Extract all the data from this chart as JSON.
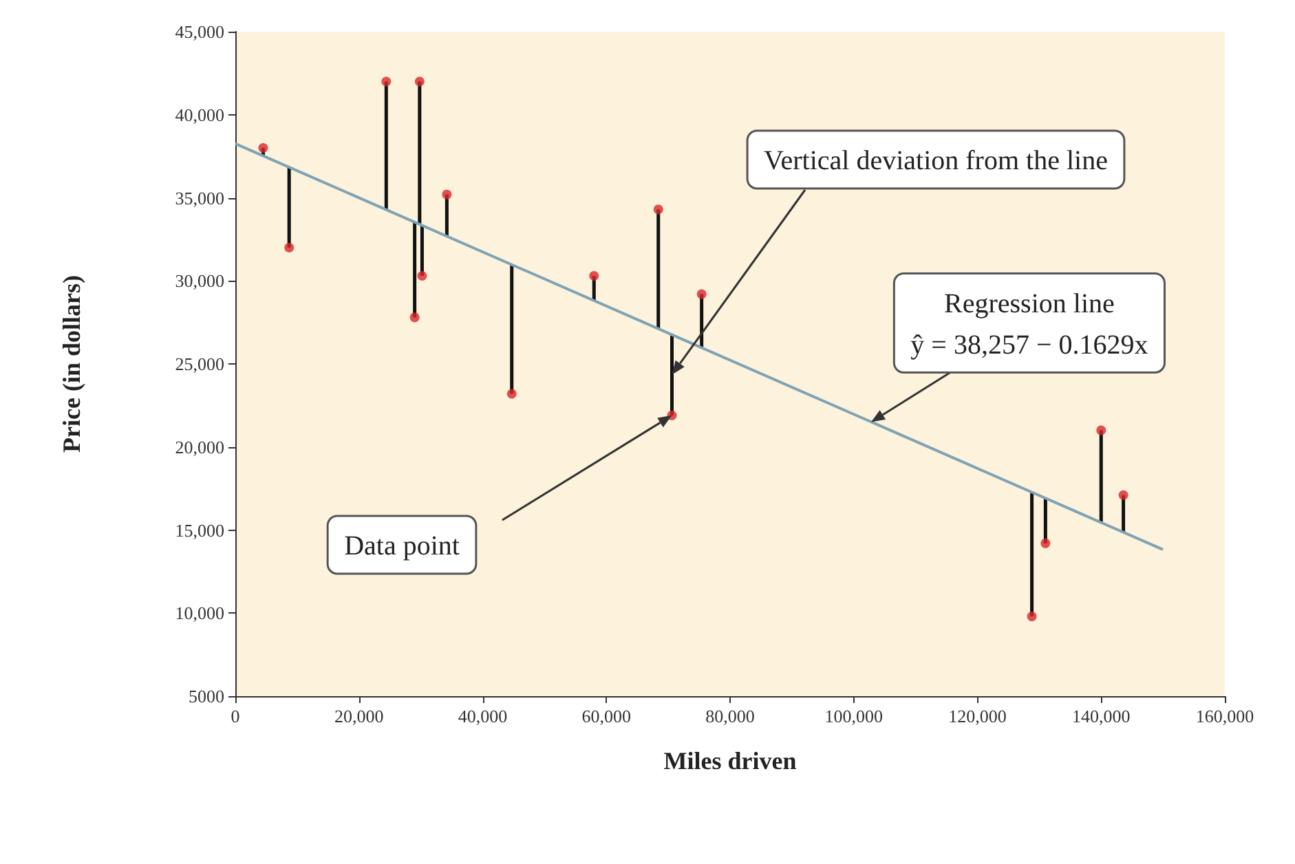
{
  "chart_data": {
    "type": "scatter",
    "xlabel": "Miles driven",
    "ylabel": "Price (in dollars)",
    "xlim": [
      0,
      160000
    ],
    "xticks": [
      0,
      {
        "value": 20000,
        "label": "20,000"
      },
      {
        "value": 40000,
        "label": "40,000"
      },
      {
        "value": 60000,
        "label": "60,000"
      },
      {
        "value": 80000,
        "label": "80,000"
      },
      {
        "value": 100000,
        "label": "100,000"
      },
      {
        "value": 120000,
        "label": "120,000"
      },
      {
        "value": 140000,
        "label": "140,000"
      },
      {
        "value": 160000,
        "label": "160,000"
      }
    ],
    "ylim": [
      5000,
      45000
    ],
    "yticks": [
      5000,
      {
        "value": 10000,
        "label": "10,000"
      },
      {
        "value": 15000,
        "label": "15,000"
      },
      {
        "value": 20000,
        "label": "20,000"
      },
      {
        "value": 25000,
        "label": "25,000"
      },
      {
        "value": 30000,
        "label": "30,000"
      },
      {
        "value": 35000,
        "label": "35,000"
      },
      {
        "value": 40000,
        "label": "40,000"
      },
      {
        "value": 45000,
        "label": "45,000"
      }
    ],
    "grid": false,
    "series": [
      {
        "marker": "circle",
        "color": "#d9262b",
        "x": [
          4500,
          8700,
          24400,
          29000,
          29800,
          30200,
          34200,
          44700,
          58000,
          68400,
          70600,
          75400,
          128800,
          131000,
          140000,
          143600
        ],
        "values": [
          38000,
          32000,
          42000,
          27800,
          42000,
          30300,
          35200,
          23200,
          30300,
          34300,
          21900,
          29200,
          9800,
          14200,
          21000,
          17100
        ],
        "errors": [
          [
            37500,
            38000
          ],
          [
            32000,
            36800
          ],
          [
            34300,
            42000
          ],
          [
            27800,
            33500
          ],
          [
            33400,
            42000
          ],
          [
            30300,
            33300
          ],
          [
            32700,
            35200
          ],
          [
            23200,
            31000
          ],
          [
            28800,
            30300
          ],
          [
            27100,
            34300
          ],
          [
            21900,
            26800
          ],
          [
            26000,
            29200
          ],
          [
            9800,
            17300
          ],
          [
            14200,
            16900
          ],
          [
            15500,
            21000
          ],
          [
            14900,
            17100
          ]
        ]
      },
      {
        "type": "line",
        "marker": "none",
        "color": "#7fa3b5",
        "x": [
          0,
          150000
        ],
        "values": [
          38257,
          13822
        ]
      }
    ],
    "annotations": [
      "Vertical deviation from the line",
      {
        "text": "Regression line\nŷ = 38,257 − 0.1629x",
        "x": 102800,
        "y": 21500
      },
      "Data point"
    ]
  }
}
